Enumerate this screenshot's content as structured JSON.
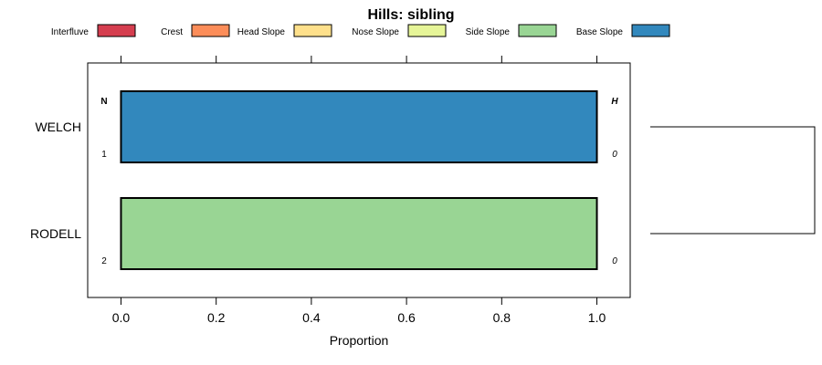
{
  "chart_data": {
    "type": "bar",
    "orientation": "horizontal",
    "stacked": true,
    "title": "Hills: sibling",
    "xlabel": "Proportion",
    "ylabel": "",
    "xlim": [
      -0.07,
      1.07
    ],
    "xticks": [
      "0.0",
      "0.2",
      "0.4",
      "0.6",
      "0.8",
      "1.0"
    ],
    "xtick_values": [
      0.0,
      0.2,
      0.4,
      0.6,
      0.8,
      1.0
    ],
    "legend_position": "top",
    "legend": [
      {
        "name": "Interfluve",
        "color": "#D53E4F"
      },
      {
        "name": "Crest",
        "color": "#FC8D59"
      },
      {
        "name": "Head Slope",
        "color": "#FEE08B"
      },
      {
        "name": "Nose Slope",
        "color": "#E6F598"
      },
      {
        "name": "Side Slope",
        "color": "#99D594"
      },
      {
        "name": "Base Slope",
        "color": "#3288BD"
      }
    ],
    "categories": [
      "WELCH",
      "RODELL"
    ],
    "series": [
      {
        "name": "Interfluve",
        "values": [
          0,
          0
        ]
      },
      {
        "name": "Crest",
        "values": [
          0,
          0
        ]
      },
      {
        "name": "Head Slope",
        "values": [
          0,
          0
        ]
      },
      {
        "name": "Nose Slope",
        "values": [
          0,
          0
        ]
      },
      {
        "name": "Side Slope",
        "values": [
          0,
          1.0
        ]
      },
      {
        "name": "Base Slope",
        "values": [
          1.0,
          0
        ]
      }
    ],
    "n_header": "N",
    "h_header": "H",
    "n_values": [
      "1",
      "2"
    ],
    "h_values": [
      "0",
      "0"
    ],
    "dendrogram": true
  }
}
